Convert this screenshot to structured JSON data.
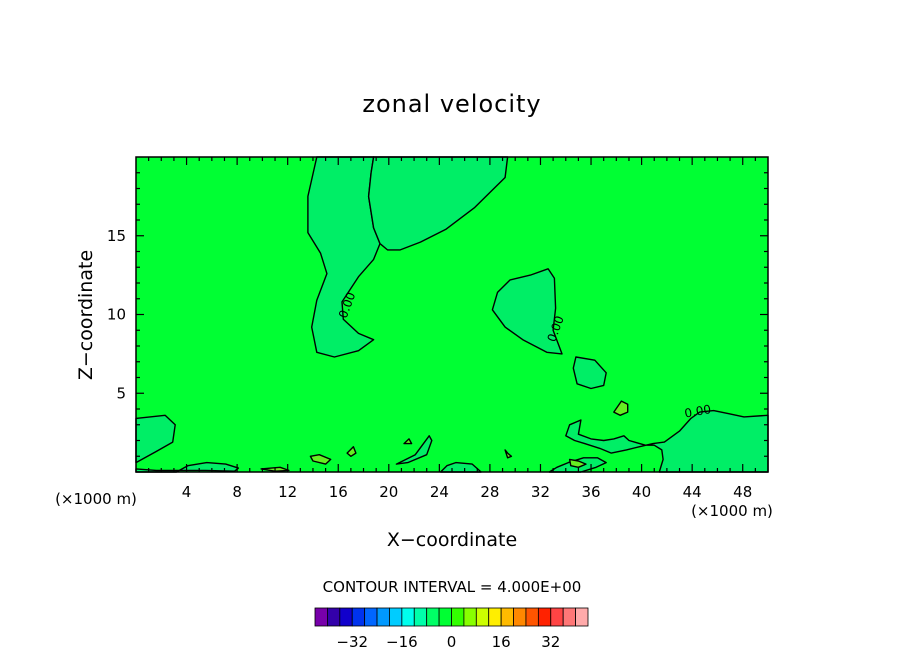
{
  "chart_data": {
    "type": "heatmap",
    "title": "zonal velocity",
    "xlabel": "X−coordinate",
    "ylabel": "Z−coordinate",
    "x_units": "(×1000 m)",
    "xlim": [
      0,
      50
    ],
    "ylim": [
      0,
      20
    ],
    "x_ticks": [
      "4",
      "8",
      "12",
      "16",
      "20",
      "24",
      "28",
      "32",
      "36",
      "40",
      "44",
      "48"
    ],
    "x_tick_values": [
      4,
      8,
      12,
      16,
      20,
      24,
      28,
      32,
      36,
      40,
      44,
      48
    ],
    "y_ticks": [
      "5",
      "10",
      "15"
    ],
    "y_tick_values": [
      5,
      10,
      15
    ],
    "contour_interval_text": "CONTOUR INTERVAL = 4.000E+00",
    "contour_labels": [
      {
        "text": "0.00",
        "x": 17,
        "y": 10.5,
        "angle": -70
      },
      {
        "text": "0.00",
        "x": 33.5,
        "y": 9.0,
        "angle": -70
      },
      {
        "text": "0.00",
        "x": 44.5,
        "y": 3.6,
        "angle": -10
      }
    ],
    "background_color": "#00ff33",
    "negative_color": "#00ee66",
    "positive_color": "#66ee22",
    "regions": [
      {
        "sign": "negative",
        "points": [
          [
            14.3,
            20
          ],
          [
            18.8,
            20
          ],
          [
            18.6,
            19
          ],
          [
            18.4,
            17.5
          ],
          [
            18.8,
            15.5
          ],
          [
            19.3,
            14.5
          ],
          [
            18.8,
            13.5
          ],
          [
            17.6,
            12.4
          ],
          [
            16.3,
            10.8
          ],
          [
            16.4,
            9.7
          ],
          [
            17.6,
            8.8
          ],
          [
            18.8,
            8.4
          ],
          [
            17.6,
            7.7
          ],
          [
            15.7,
            7.3
          ],
          [
            14.3,
            7.6
          ],
          [
            13.9,
            9.2
          ],
          [
            14.3,
            10.9
          ],
          [
            15.1,
            12.6
          ],
          [
            14.6,
            13.9
          ],
          [
            13.6,
            15.2
          ],
          [
            13.6,
            17.5
          ]
        ]
      },
      {
        "sign": "negative",
        "points": [
          [
            18.8,
            20
          ],
          [
            29.4,
            20
          ],
          [
            29.2,
            18.7
          ],
          [
            26.8,
            16.8
          ],
          [
            24.5,
            15.4
          ],
          [
            22.5,
            14.6
          ],
          [
            20.9,
            14.1
          ],
          [
            19.9,
            14.1
          ],
          [
            19.3,
            14.5
          ],
          [
            18.8,
            15.5
          ],
          [
            18.4,
            17.5
          ],
          [
            18.6,
            19
          ]
        ]
      },
      {
        "sign": "negative",
        "points": [
          [
            31.2,
            12.5
          ],
          [
            32.6,
            12.9
          ],
          [
            33.1,
            12.3
          ],
          [
            33.2,
            10.4
          ],
          [
            33.0,
            9.0
          ],
          [
            33.7,
            7.5
          ],
          [
            32.5,
            7.6
          ],
          [
            30.6,
            8.4
          ],
          [
            29.2,
            9.2
          ],
          [
            28.2,
            10.3
          ],
          [
            28.6,
            11.4
          ],
          [
            29.6,
            12.2
          ]
        ]
      },
      {
        "sign": "negative",
        "points": [
          [
            34.8,
            7.3
          ],
          [
            36.3,
            7.1
          ],
          [
            37.2,
            6.3
          ],
          [
            37.0,
            5.5
          ],
          [
            36.0,
            5.3
          ],
          [
            34.9,
            5.6
          ],
          [
            34.6,
            6.6
          ]
        ]
      },
      {
        "sign": "negative",
        "points": [
          [
            0,
            3.4
          ],
          [
            2.3,
            3.6
          ],
          [
            3.1,
            3.0
          ],
          [
            2.9,
            1.9
          ],
          [
            1.6,
            1.3
          ],
          [
            0,
            0.6
          ]
        ]
      },
      {
        "sign": "negative",
        "points": [
          [
            41.4,
            0
          ],
          [
            50,
            0
          ],
          [
            50,
            3.6
          ],
          [
            48.1,
            3.5
          ],
          [
            46.9,
            3.7
          ],
          [
            45.7,
            3.9
          ],
          [
            44.6,
            3.8
          ],
          [
            43.9,
            3.4
          ],
          [
            43.0,
            2.6
          ],
          [
            41.8,
            1.9
          ],
          [
            40.9,
            1.8
          ],
          [
            39.8,
            1.6
          ],
          [
            38.8,
            1.4
          ],
          [
            37.6,
            1.2
          ],
          [
            36.7,
            1.5
          ],
          [
            35.5,
            1.8
          ],
          [
            34.7,
            2.0
          ],
          [
            34.0,
            2.3
          ],
          [
            34.3,
            3.0
          ],
          [
            35.2,
            3.3
          ],
          [
            35.0,
            2.4
          ],
          [
            36.0,
            2.1
          ],
          [
            37.0,
            2.0
          ],
          [
            37.8,
            2.1
          ],
          [
            38.6,
            2.3
          ],
          [
            39.0,
            2.0
          ],
          [
            40.3,
            1.7
          ],
          [
            41.0,
            1.7
          ],
          [
            41.6,
            1.4
          ],
          [
            41.7,
            0.8
          ]
        ]
      },
      {
        "sign": "negative",
        "points": [
          [
            20.6,
            0.5
          ],
          [
            22.1,
            1.1
          ],
          [
            23.2,
            2.3
          ],
          [
            23.4,
            2.0
          ],
          [
            23.0,
            1.1
          ],
          [
            21.5,
            0.6
          ]
        ]
      },
      {
        "sign": "negative",
        "points": [
          [
            0,
            0
          ],
          [
            3.2,
            0
          ],
          [
            4.1,
            0.4
          ],
          [
            5.6,
            0.6
          ],
          [
            7.1,
            0.5
          ],
          [
            8.1,
            0.25
          ],
          [
            7.8,
            0.05
          ],
          [
            5.5,
            0.1
          ],
          [
            3.5,
            0.1
          ],
          [
            1.6,
            0.1
          ],
          [
            0,
            0.2
          ]
        ]
      },
      {
        "sign": "negative",
        "points": [
          [
            24.1,
            0
          ],
          [
            27.3,
            0
          ],
          [
            26.6,
            0.5
          ],
          [
            25.3,
            0.6
          ],
          [
            24.6,
            0.4
          ]
        ]
      },
      {
        "sign": "negative",
        "points": [
          [
            32.7,
            0
          ],
          [
            35.2,
            0
          ],
          [
            36.4,
            0.3
          ],
          [
            37.2,
            0.6
          ],
          [
            36.5,
            0.9
          ],
          [
            35.4,
            0.9
          ],
          [
            34.2,
            0.6
          ],
          [
            33.3,
            0.3
          ]
        ]
      },
      {
        "sign": "positive",
        "points": [
          [
            37.8,
            3.8
          ],
          [
            38.4,
            4.5
          ],
          [
            38.9,
            4.3
          ],
          [
            38.9,
            3.8
          ],
          [
            38.3,
            3.6
          ]
        ]
      },
      {
        "sign": "positive",
        "points": [
          [
            13.8,
            1.0
          ],
          [
            14.5,
            1.1
          ],
          [
            15.4,
            0.8
          ],
          [
            15.0,
            0.5
          ],
          [
            14.0,
            0.7
          ]
        ]
      },
      {
        "sign": "positive",
        "points": [
          [
            16.7,
            1.2
          ],
          [
            17.2,
            1.6
          ],
          [
            17.4,
            1.2
          ],
          [
            17.0,
            1.0
          ]
        ]
      },
      {
        "sign": "positive",
        "points": [
          [
            21.2,
            1.8
          ],
          [
            21.6,
            2.1
          ],
          [
            21.8,
            1.8
          ]
        ]
      },
      {
        "sign": "positive",
        "points": [
          [
            29.2,
            1.4
          ],
          [
            29.4,
            1.2
          ],
          [
            29.7,
            1.0
          ],
          [
            29.4,
            0.9
          ]
        ]
      },
      {
        "sign": "positive",
        "points": [
          [
            34.3,
            0.8
          ],
          [
            35.0,
            0.7
          ],
          [
            35.6,
            0.5
          ],
          [
            35.0,
            0.3
          ],
          [
            34.4,
            0.4
          ]
        ]
      },
      {
        "sign": "positive",
        "points": [
          [
            9.9,
            0.2
          ],
          [
            11.4,
            0.3
          ],
          [
            12.1,
            0.1
          ],
          [
            11.0,
            0.05
          ]
        ]
      }
    ],
    "colorbar": {
      "colors": [
        "#7700aa",
        "#3300aa",
        "#1100cc",
        "#0033ee",
        "#0066ff",
        "#0099ff",
        "#00ccff",
        "#00ffee",
        "#00ffaa",
        "#00ff66",
        "#00ff33",
        "#33ff00",
        "#88ff00",
        "#ccff00",
        "#ffee00",
        "#ffbb00",
        "#ff8800",
        "#ff5500",
        "#ff2200",
        "#ff4444",
        "#ff7777",
        "#ffaaaa"
      ],
      "tick_labels": [
        "−32",
        "−16",
        "0",
        "16",
        "32"
      ],
      "tick_values": [
        -32,
        -16,
        0,
        16,
        32
      ],
      "min": -44,
      "max": 44
    }
  }
}
